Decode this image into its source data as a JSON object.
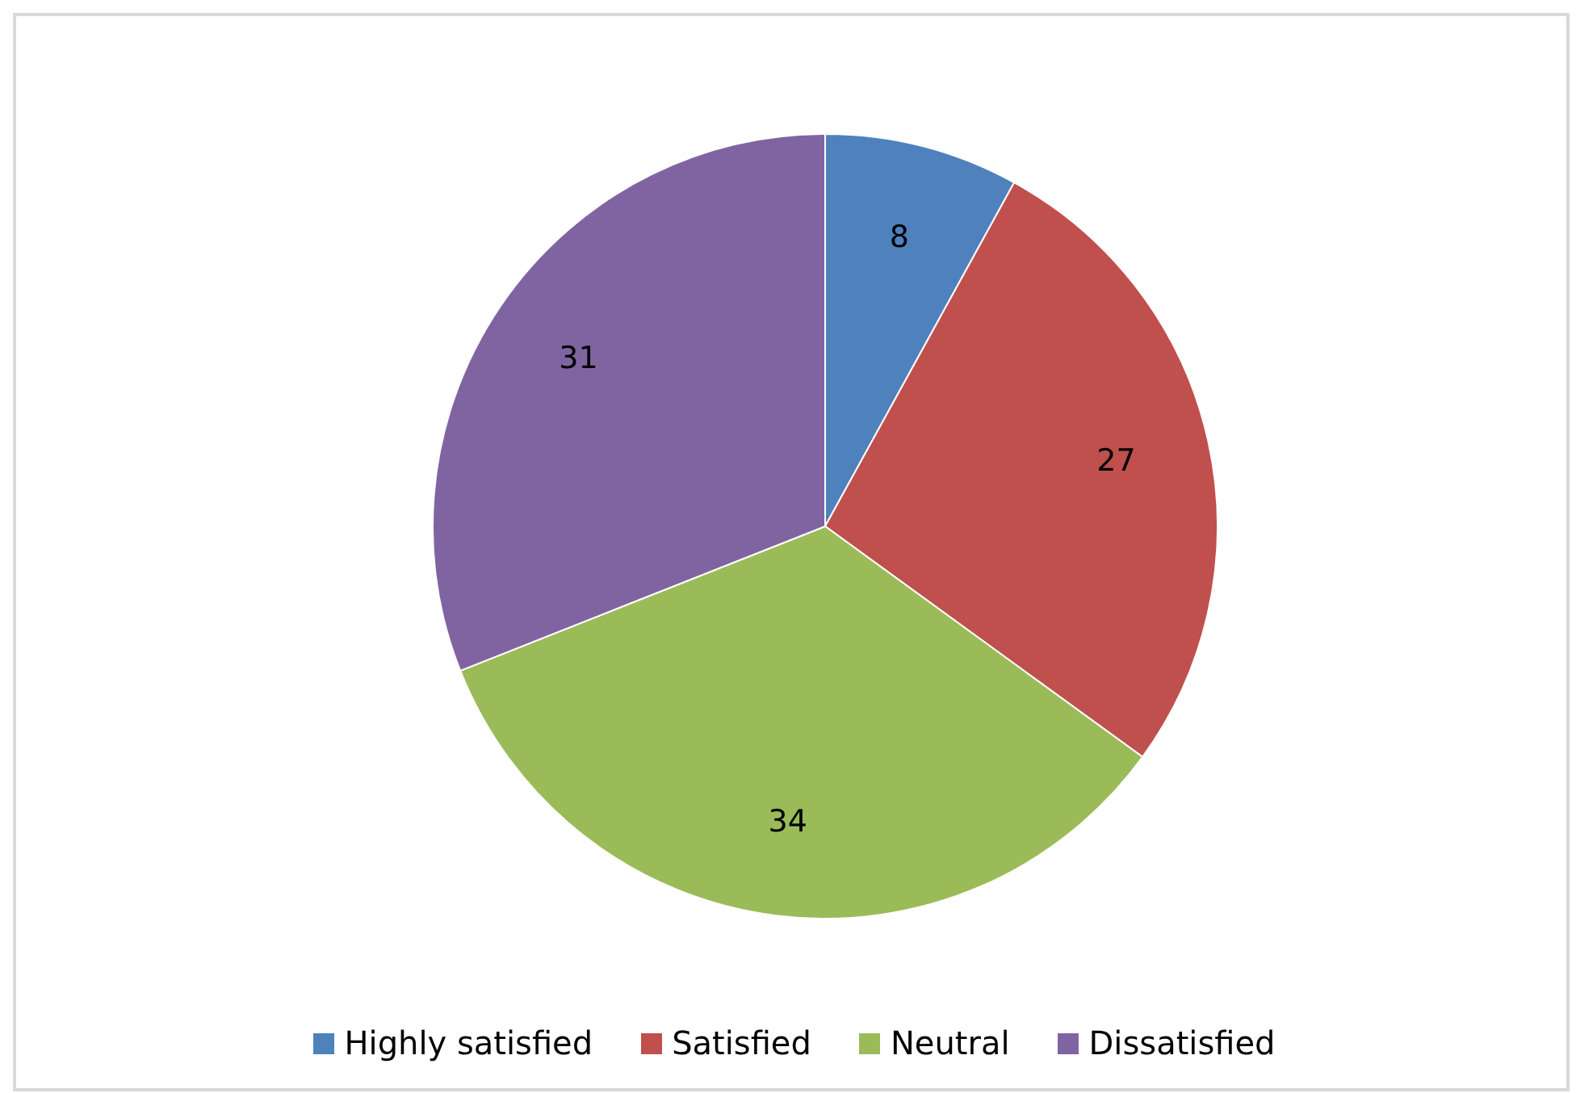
{
  "chart_data": {
    "type": "pie",
    "categories": [
      "Highly satisfied",
      "Satisfied",
      "Neutral",
      "Dissatisfied"
    ],
    "values": [
      8,
      27,
      34,
      31
    ],
    "colors": [
      "#4f81bd",
      "#c0504d",
      "#9bbb59",
      "#8064a2"
    ],
    "data_labels": true,
    "legend": "bottom"
  }
}
